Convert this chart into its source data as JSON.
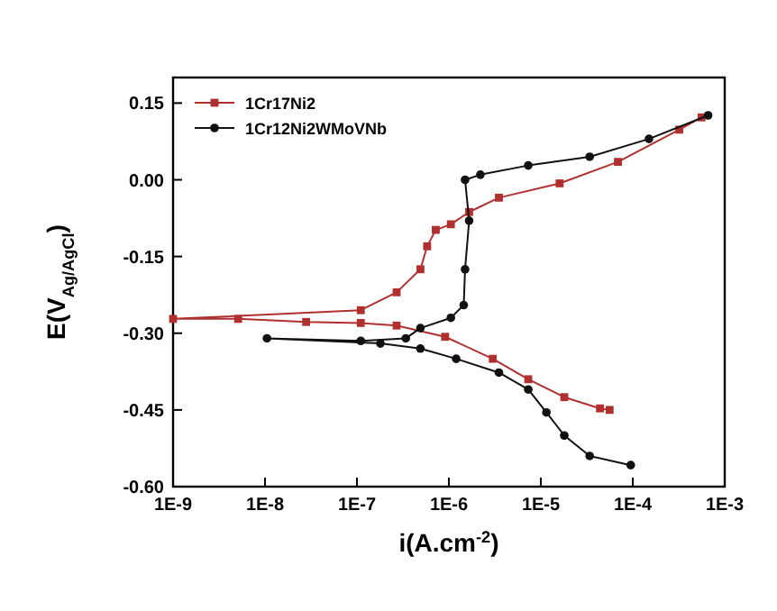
{
  "chart_data": {
    "type": "line",
    "xlabel": "i(A.cm$^{-2}$)",
    "ylabel": "E(V$_{Ag/AgCl}$)",
    "log": "x",
    "xlim": [
      1e-09,
      0.001
    ],
    "ylim": [
      -0.6,
      0.2
    ],
    "xticks": [
      {
        "value": 1e-09,
        "label": "1E-9"
      },
      {
        "value": 1e-08,
        "label": "1E-8"
      },
      {
        "value": 1e-07,
        "label": "1E-7"
      },
      {
        "value": 1e-06,
        "label": "1E-6"
      },
      {
        "value": 1e-05,
        "label": "1E-5"
      },
      {
        "value": 0.0001,
        "label": "1E-4"
      },
      {
        "value": 0.001,
        "label": "1E-3"
      }
    ],
    "yticks": [
      {
        "value": -0.6,
        "label": "-0.60"
      },
      {
        "value": -0.45,
        "label": "-0.45"
      },
      {
        "value": -0.3,
        "label": "-0.30"
      },
      {
        "value": -0.15,
        "label": "-0.15"
      },
      {
        "value": 0,
        "label": "0.00"
      },
      {
        "value": 0.15,
        "label": "0.15"
      }
    ],
    "legend": "top left",
    "series": [
      {
        "name": "1Cr17Ni2",
        "color": "#b03030",
        "marker": "square",
        "x": [
          5.6e-05,
          4.4e-05,
          1.8e-05,
          7.3e-06,
          3e-06,
          9.1e-07,
          2.7e-07,
          1.1e-07,
          2.8e-08,
          5.1e-09,
          1e-09,
          1.1e-07,
          2.7e-07,
          4.9e-07,
          5.8e-07,
          7.2e-07,
          1.05e-06,
          1.66e-06,
          3.5e-06,
          1.6e-05,
          6.9e-05,
          0.00032,
          0.00056
        ],
        "values": [
          -0.45,
          -0.447,
          -0.425,
          -0.39,
          -0.35,
          -0.307,
          -0.285,
          -0.28,
          -0.278,
          -0.272,
          -0.272,
          -0.255,
          -0.22,
          -0.175,
          -0.13,
          -0.098,
          -0.087,
          -0.063,
          -0.035,
          -0.007,
          0.035,
          0.098,
          0.122
        ]
      },
      {
        "name": "1Cr12Ni2WMoVNb",
        "color": "#111111",
        "marker": "circle",
        "x": [
          9.5e-05,
          3.4e-05,
          1.8e-05,
          1.15e-05,
          7.3e-06,
          3.5e-06,
          1.2e-06,
          4.9e-07,
          1.8e-07,
          1.05e-08,
          1.1e-07,
          3.4e-07,
          4.9e-07,
          1.05e-06,
          1.45e-06,
          1.5e-06,
          1.66e-06,
          1.5e-06,
          2.2e-06,
          7.3e-06,
          3.4e-05,
          0.00015,
          0.00066
        ],
        "values": [
          -0.558,
          -0.54,
          -0.5,
          -0.455,
          -0.41,
          -0.377,
          -0.35,
          -0.33,
          -0.32,
          -0.31,
          -0.315,
          -0.31,
          -0.29,
          -0.27,
          -0.245,
          -0.175,
          -0.08,
          0.0,
          0.01,
          0.028,
          0.045,
          0.08,
          0.126
        ]
      }
    ]
  }
}
